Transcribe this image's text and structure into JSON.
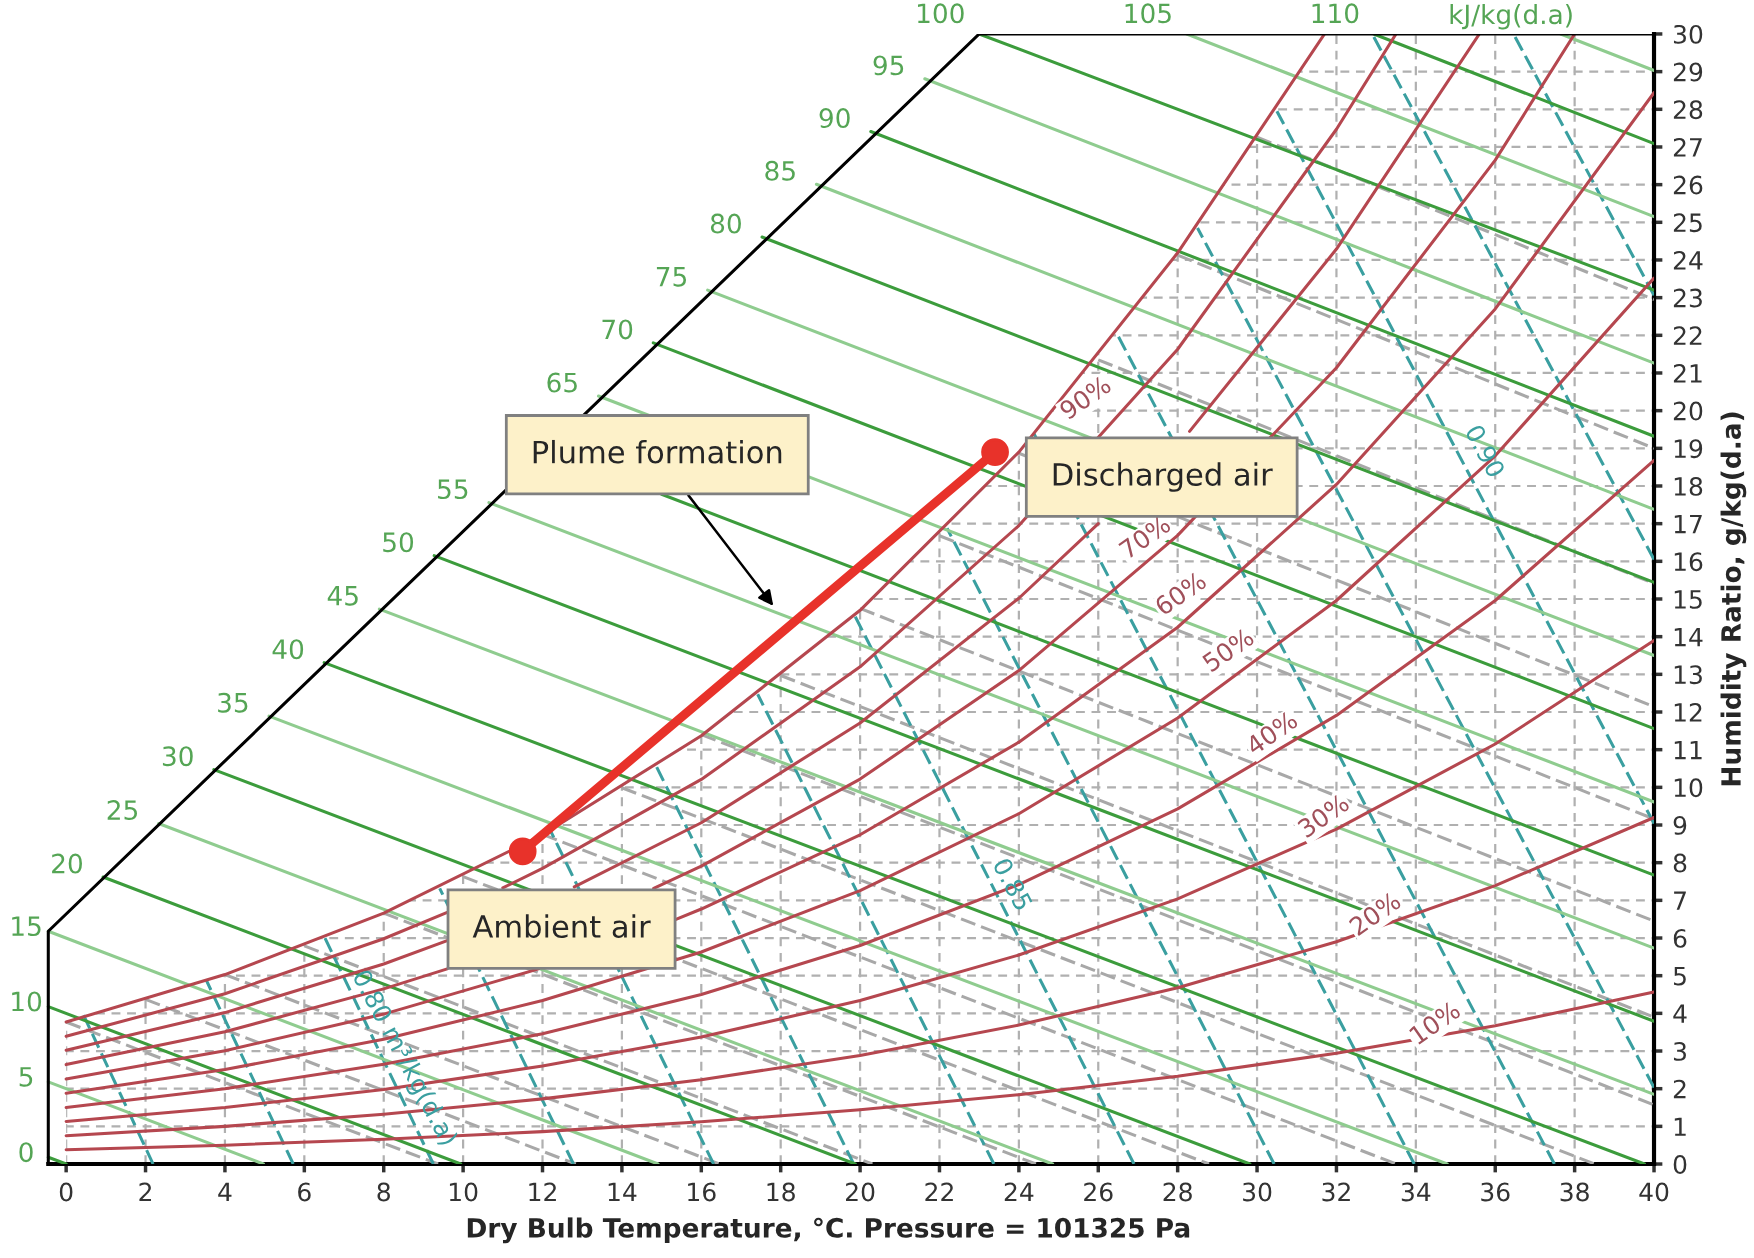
{
  "chart_data": {
    "type": "line",
    "xlabel": "Dry Bulb Temperature, °C. Pressure = 101325 Pa",
    "ylabel": "Humidity Ratio, g/kg(d.a)",
    "xlim": [
      -1.6,
      40
    ],
    "ylim": [
      0,
      30
    ],
    "xticks": [
      0,
      2,
      4,
      6,
      8,
      10,
      12,
      14,
      16,
      18,
      20,
      22,
      24,
      26,
      28,
      30,
      32,
      34,
      36,
      38,
      40
    ],
    "yticks": [
      0,
      1,
      2,
      3,
      4,
      5,
      6,
      7,
      8,
      9,
      10,
      11,
      12,
      13,
      14,
      15,
      16,
      17,
      18,
      19,
      20,
      21,
      22,
      23,
      24,
      25,
      26,
      27,
      28,
      29,
      30
    ],
    "grid": true,
    "series": [
      {
        "color": "#a8a8a8",
        "line_style": "dashed",
        "x": [
          0,
          9.37
        ],
        "values": [
          3.77,
          0
        ]
      },
      {
        "color": "#a8a8a8",
        "line_style": "dashed",
        "x": [
          2,
          12.84
        ],
        "values": [
          4.37,
          0
        ]
      },
      {
        "color": "#a8a8a8",
        "line_style": "dashed",
        "x": [
          4,
          16.46
        ],
        "values": [
          5.03,
          0
        ]
      },
      {
        "color": "#a8a8a8",
        "line_style": "dashed",
        "x": [
          6,
          20.31
        ],
        "values": [
          5.79,
          0
        ]
      },
      {
        "color": "#a8a8a8",
        "line_style": "dashed",
        "x": [
          8,
          24.43
        ],
        "values": [
          6.66,
          0
        ]
      },
      {
        "color": "#a8a8a8",
        "line_style": "dashed",
        "x": [
          10,
          28.79
        ],
        "values": [
          7.63,
          0
        ]
      },
      {
        "color": "#a8a8a8",
        "line_style": "dashed",
        "x": [
          12,
          33.51
        ],
        "values": [
          8.75,
          0
        ]
      },
      {
        "color": "#a8a8a8",
        "line_style": "dashed",
        "x": [
          14,
          38.51
        ],
        "values": [
          9.99,
          0
        ]
      },
      {
        "color": "#a8a8a8",
        "line_style": "dashed",
        "x": [
          16,
          40
        ],
        "values": [
          11.4,
          1.57
        ]
      },
      {
        "color": "#a8a8a8",
        "line_style": "dashed",
        "x": [
          18,
          40
        ],
        "values": [
          12.97,
          3.9
        ]
      },
      {
        "color": "#a8a8a8",
        "line_style": "dashed",
        "x": [
          20,
          40
        ],
        "values": [
          14.75,
          6.45
        ]
      },
      {
        "color": "#a8a8a8",
        "line_style": "dashed",
        "x": [
          22,
          40
        ],
        "values": [
          16.68,
          9.16
        ]
      },
      {
        "color": "#a8a8a8",
        "line_style": "dashed",
        "x": [
          24,
          40
        ],
        "values": [
          18.87,
          12.14
        ]
      },
      {
        "color": "#a8a8a8",
        "line_style": "dashed",
        "x": [
          26,
          40
        ],
        "values": [
          21.35,
          15.41
        ]
      },
      {
        "color": "#a8a8a8",
        "line_style": "dashed",
        "x": [
          28,
          40
        ],
        "values": [
          24.13,
          19.0
        ]
      },
      {
        "color": "#a8a8a8",
        "line_style": "dashed",
        "x": [
          30,
          40
        ],
        "values": [
          27.26,
          22.95
        ]
      },
      {
        "color": "#3a9fa0",
        "line_style": "dashed",
        "x": [
          2.19,
          0.44
        ],
        "values": [
          0,
          3.95
        ]
      },
      {
        "color": "#3a9fa0",
        "line_style": "dashed",
        "x": [
          5.72,
          3.53
        ],
        "values": [
          0,
          4.88
        ]
      },
      {
        "color": "#3a9fa0",
        "line_style": "dashed",
        "x": [
          9.25,
          6.52
        ],
        "values": [
          0,
          6.0
        ]
      },
      {
        "color": "#3a9fa0",
        "line_style": "dashed",
        "x": [
          12.78,
          9.41
        ],
        "values": [
          0,
          7.32
        ]
      },
      {
        "color": "#3a9fa0",
        "line_style": "dashed",
        "x": [
          16.31,
          12.2
        ],
        "values": [
          0,
          8.85
        ]
      },
      {
        "color": "#3a9fa0",
        "line_style": "dashed",
        "x": [
          19.84,
          14.87
        ],
        "values": [
          0,
          10.55
        ]
      },
      {
        "color": "#3a9fa0",
        "line_style": "dashed",
        "x": [
          23.37,
          17.42
        ],
        "values": [
          0,
          12.47
        ]
      },
      {
        "color": "#3a9fa0",
        "line_style": "dashed",
        "x": [
          26.9,
          19.86
        ],
        "values": [
          0,
          14.57
        ]
      },
      {
        "color": "#3a9fa0",
        "line_style": "dashed",
        "x": [
          30.43,
          22.19
        ],
        "values": [
          0,
          16.88
        ]
      },
      {
        "color": "#3a9fa0",
        "line_style": "dashed",
        "x": [
          33.96,
          24.38
        ],
        "values": [
          0,
          19.39
        ]
      },
      {
        "color": "#3a9fa0",
        "line_style": "dashed",
        "x": [
          37.49,
          26.49
        ],
        "values": [
          0,
          22.0
        ]
      },
      {
        "color": "#3a9fa0",
        "line_style": "dashed",
        "x": [
          40,
          28.5
        ],
        "values": [
          2.03,
          24.85
        ]
      },
      {
        "color": "#3a9fa0",
        "line_style": "dashed",
        "x": [
          40,
          30.5
        ],
        "values": [
          9.04,
          27.95
        ]
      },
      {
        "color": "#3a9fa0",
        "line_style": "dashed",
        "x": [
          40,
          32.9
        ],
        "values": [
          16.05,
          30
        ]
      },
      {
        "color": "#3a9fa0",
        "line_style": "dashed",
        "x": [
          40,
          36.46
        ],
        "values": [
          23.06,
          30
        ]
      },
      {
        "color": "#3c9c3c",
        "x": [
          -0.45,
          0.0
        ],
        "values": [
          0.18,
          0
        ]
      },
      {
        "color": "#8fcc8f",
        "x": [
          -0.45,
          4.97
        ],
        "values": [
          2.18,
          0
        ]
      },
      {
        "color": "#3c9c3c",
        "x": [
          -0.45,
          9.94
        ],
        "values": [
          4.18,
          0
        ]
      },
      {
        "color": "#8fcc8f",
        "x": [
          -0.45,
          14.91
        ],
        "values": [
          6.18,
          0
        ]
      },
      {
        "color": "#3c9c3c",
        "x": [
          0.93,
          19.88
        ],
        "values": [
          7.62,
          0
        ]
      },
      {
        "color": "#8fcc8f",
        "x": [
          2.33,
          24.85
        ],
        "values": [
          9.04,
          0
        ]
      },
      {
        "color": "#3c9c3c",
        "x": [
          3.72,
          29.82
        ],
        "values": [
          10.47,
          0
        ]
      },
      {
        "color": "#8fcc8f",
        "x": [
          5.11,
          34.79
        ],
        "values": [
          11.89,
          0
        ]
      },
      {
        "color": "#3c9c3c",
        "x": [
          6.5,
          39.76
        ],
        "values": [
          13.31,
          0
        ]
      },
      {
        "color": "#8fcc8f",
        "x": [
          7.89,
          40
        ],
        "values": [
          14.73,
          1.85
        ]
      },
      {
        "color": "#3c9c3c",
        "x": [
          9.27,
          40
        ],
        "values": [
          16.15,
          3.79
        ]
      },
      {
        "color": "#8fcc8f",
        "x": [
          10.65,
          40
        ],
        "values": [
          17.56,
          5.73
        ]
      },
      {
        "color": "#3c9c3c",
        "x": [
          15.0,
          40
        ],
        "values": [
          17.78,
          7.67
        ]
      },
      {
        "color": "#8fcc8f",
        "x": [
          13.41,
          40
        ],
        "values": [
          20.39,
          9.61
        ]
      },
      {
        "color": "#3c9c3c",
        "x": [
          14.79,
          40
        ],
        "values": [
          21.8,
          11.56
        ]
      },
      {
        "color": "#8fcc8f",
        "x": [
          16.16,
          40
        ],
        "values": [
          23.2,
          13.5
        ]
      },
      {
        "color": "#3c9c3c",
        "x": [
          17.53,
          40
        ],
        "values": [
          24.61,
          15.44
        ]
      },
      {
        "color": "#8fcc8f",
        "x": [
          18.9,
          40
        ],
        "values": [
          26.01,
          17.38
        ]
      },
      {
        "color": "#3c9c3c",
        "x": [
          20.27,
          40
        ],
        "values": [
          27.41,
          19.32
        ]
      },
      {
        "color": "#8fcc8f",
        "x": [
          21.63,
          40
        ],
        "values": [
          28.81,
          21.26
        ]
      },
      {
        "color": "#3c9c3c",
        "x": [
          23.0,
          40
        ],
        "values": [
          30,
          23.2
        ]
      },
      {
        "color": "#8fcc8f",
        "x": [
          28.23,
          40
        ],
        "values": [
          30,
          25.15
        ]
      },
      {
        "color": "#3c9c3c",
        "x": [
          32.94,
          40
        ],
        "values": [
          30,
          27.09
        ]
      },
      {
        "color": "#8fcc8f",
        "x": [
          37.65,
          40
        ],
        "values": [
          30,
          29.03
        ]
      },
      {
        "color": "#b5474f",
        "x": [
          0,
          4,
          8,
          12,
          16,
          20,
          24,
          28,
          32,
          36,
          40
        ],
        "values": [
          0.38,
          0.5,
          0.66,
          0.86,
          1.12,
          1.44,
          1.84,
          2.33,
          2.94,
          3.67,
          4.57
        ]
      },
      {
        "color": "#b5474f",
        "x": [
          0,
          4,
          8,
          12,
          16,
          20,
          24,
          28,
          32,
          36,
          40
        ],
        "values": [
          0.75,
          1.0,
          1.32,
          1.73,
          2.24,
          2.88,
          3.69,
          4.68,
          5.9,
          7.39,
          9.2
        ]
      },
      {
        "color": "#b5474f",
        "x": [
          0,
          4,
          8,
          12,
          16,
          20,
          24,
          28,
          32,
          36,
          40
        ],
        "values": [
          1.13,
          1.5,
          1.98,
          2.6,
          3.37,
          4.34,
          5.55,
          7.04,
          8.89,
          11.15,
          13.9
        ]
      },
      {
        "color": "#b5474f",
        "x": [
          0,
          4,
          8,
          12,
          16,
          20,
          24,
          28,
          32,
          36,
          40
        ],
        "values": [
          1.5,
          2.0,
          2.65,
          3.46,
          4.5,
          5.8,
          7.42,
          9.43,
          11.91,
          14.96,
          18.68
        ]
      },
      {
        "color": "#b5474f",
        "x": [
          0,
          4,
          8,
          12,
          16,
          20,
          24,
          28,
          32,
          36,
          40
        ],
        "values": [
          1.88,
          2.51,
          3.31,
          4.34,
          5.63,
          7.26,
          9.3,
          11.84,
          14.96,
          18.8,
          23.52
        ]
      },
      {
        "color": "#b5474f",
        "x": [
          0,
          4,
          8,
          11.9,
          13.5,
          15.3,
          16,
          20,
          24,
          28,
          32,
          36,
          40
        ],
        "values": [
          2.26,
          3.01,
          3.98,
          5.18,
          null,
          6.47,
          6.77,
          8.74,
          11.2,
          14.25,
          18.04,
          22.7,
          28.44
        ]
      },
      {
        "color": "#b5474f",
        "x": [
          0,
          4,
          8,
          9.6,
          12,
          14.8,
          16,
          20,
          24,
          28,
          32,
          36,
          38.0
        ],
        "values": [
          2.64,
          3.51,
          4.65,
          5.18,
          null,
          7.32,
          7.91,
          10.22,
          13.1,
          16.69,
          21.14,
          26.65,
          30
        ]
      },
      {
        "color": "#b5474f",
        "x": [
          0,
          4,
          8,
          9.6,
          11,
          12.8,
          16,
          20,
          24,
          26.0,
          27,
          28.3,
          32,
          35.6
        ],
        "values": [
          3.02,
          4.02,
          5.31,
          5.93,
          null,
          7.36,
          9.06,
          11.71,
          15.02,
          17.0,
          null,
          19.45,
          24.29,
          30
        ]
      },
      {
        "color": "#b5474f",
        "x": [
          0,
          4,
          8,
          9.6,
          10.3,
          11.0,
          12,
          16,
          20,
          24,
          28,
          32,
          33.5
        ],
        "values": [
          3.39,
          4.52,
          5.98,
          6.68,
          null,
          7.33,
          7.85,
          10.21,
          13.2,
          16.95,
          21.63,
          27.47,
          30
        ]
      },
      {
        "color": "#b5474f",
        "x": [
          0,
          4,
          8,
          12,
          16,
          20,
          24,
          28,
          31.7
        ],
        "values": [
          3.77,
          5.03,
          6.66,
          8.74,
          11.37,
          14.7,
          18.9,
          24.19,
          30
        ]
      },
      {
        "color": "#000000",
        "x": [
          -0.45,
          -0.45,
          23.0,
          40
        ],
        "values": [
          0,
          6.18,
          30,
          30
        ]
      },
      {
        "color": "#e8322a",
        "marker": "circle",
        "x": [
          11.5,
          23.4
        ],
        "values": [
          8.3,
          18.9
        ]
      }
    ],
    "annotations": [
      {
        "text": "Plume formation",
        "x": 17.9,
        "y": 14.7
      },
      {
        "text": "Discharged air",
        "x": 23.4,
        "y": 18.9
      },
      {
        "text": "Ambient air",
        "x": 11.5,
        "y": 8.3
      },
      {
        "text": "0",
        "x": -0.45,
        "y": 0.18
      },
      {
        "text": "5",
        "x": -0.45,
        "y": 2.18
      },
      {
        "text": "10",
        "x": -0.45,
        "y": 4.18
      },
      {
        "text": "15",
        "x": -0.45,
        "y": 6.18
      },
      {
        "text": "20",
        "x": 0.93,
        "y": 7.62
      },
      {
        "text": "25",
        "x": 2.33,
        "y": 9.04
      },
      {
        "text": "30",
        "x": 3.72,
        "y": 10.47
      },
      {
        "text": "35",
        "x": 5.11,
        "y": 11.89
      },
      {
        "text": "40",
        "x": 6.5,
        "y": 13.31
      },
      {
        "text": "45",
        "x": 7.89,
        "y": 14.73
      },
      {
        "text": "50",
        "x": 9.27,
        "y": 16.15
      },
      {
        "text": "55",
        "x": 10.65,
        "y": 17.56
      },
      {
        "text": "65",
        "x": 13.41,
        "y": 20.39
      },
      {
        "text": "70",
        "x": 14.79,
        "y": 21.8
      },
      {
        "text": "75",
        "x": 16.16,
        "y": 23.2
      },
      {
        "text": "80",
        "x": 17.53,
        "y": 24.61
      },
      {
        "text": "85",
        "x": 18.9,
        "y": 26.01
      },
      {
        "text": "90",
        "x": 20.27,
        "y": 27.41
      },
      {
        "text": "95",
        "x": 21.63,
        "y": 28.81
      },
      {
        "text": "100",
        "x": 23.0,
        "y": 30
      },
      {
        "text": "105",
        "x": 28.23,
        "y": 30
      },
      {
        "text": "110",
        "x": 32.94,
        "y": 30
      },
      "kJ/kg(d.a)",
      {
        "text": "90%",
        "x": 25.7,
        "y": 20.3
      },
      {
        "text": "70%",
        "x": 27.2,
        "y": 16.6
      },
      {
        "text": "60%",
        "x": 28.1,
        "y": 15.1
      },
      {
        "text": "50%",
        "x": 29.3,
        "y": 13.6
      },
      {
        "text": "40%",
        "x": 30.4,
        "y": 11.4
      },
      {
        "text": "30%",
        "x": 31.7,
        "y": 9.2
      },
      {
        "text": "20%",
        "x": 33.0,
        "y": 6.6
      },
      {
        "text": "10%",
        "x": 34.5,
        "y": 3.7
      },
      {
        "text": "0.90",
        "x": 35.7,
        "y": 18.9
      },
      {
        "text": "0.85",
        "x": 23.8,
        "y": 7.4
      },
      {
        "text": "0.80 m³/kg(d.a)",
        "x": 8.5,
        "y": 2.8
      }
    ]
  }
}
